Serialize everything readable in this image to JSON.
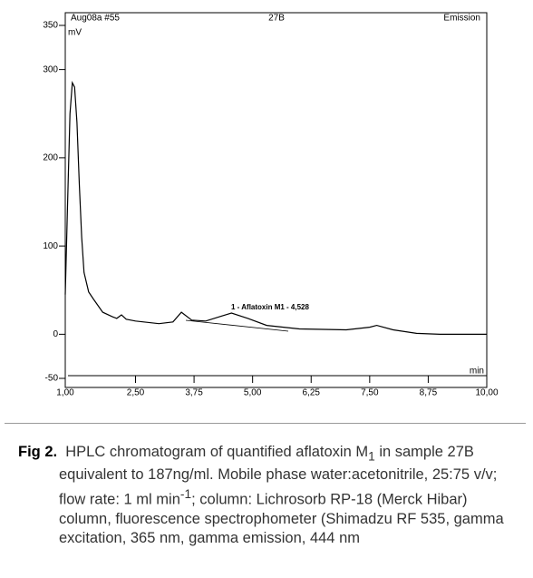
{
  "chart_data": {
    "type": "line",
    "header_left": "Aug08a #55",
    "header_center": "27B",
    "header_right": "Emission",
    "y_unit": "mV",
    "x_unit": "min",
    "annotation": "1 - Aflatoxin M1 - 4,528",
    "x": [
      1.0,
      1.05,
      1.1,
      1.15,
      1.2,
      1.25,
      1.3,
      1.35,
      1.4,
      1.5,
      1.6,
      1.8,
      2.0,
      2.1,
      2.2,
      2.3,
      2.5,
      3.0,
      3.3,
      3.48,
      3.7,
      4.0,
      4.3,
      4.55,
      4.9,
      5.3,
      6.0,
      7.0,
      7.5,
      7.65,
      8.0,
      8.5,
      9.0,
      10.0
    ],
    "series": [
      {
        "color": "#000000",
        "values": [
          45,
          150,
          250,
          285,
          280,
          240,
          170,
          110,
          70,
          48,
          40,
          25,
          20,
          18,
          22,
          17,
          15,
          12,
          14,
          25,
          16,
          15,
          20,
          24,
          18,
          10,
          6,
          5,
          8,
          10,
          5,
          1,
          0,
          0
        ]
      }
    ],
    "xlim": [
      1.0,
      10.0
    ],
    "ylim": [
      -50,
      350
    ],
    "xticks": [
      {
        "value": 1.0,
        "label": "1,00"
      },
      {
        "value": 2.5,
        "label": "2,50"
      },
      {
        "value": 3.75,
        "label": "3,75"
      },
      {
        "value": 5.0,
        "label": "5,00"
      },
      {
        "value": 6.25,
        "label": "6,25"
      },
      {
        "value": 7.5,
        "label": "7,50"
      },
      {
        "value": 8.75,
        "label": "8,75"
      },
      {
        "value": 10.0,
        "label": "10,00"
      }
    ],
    "yticks": [
      350,
      300,
      200,
      100,
      0,
      -50
    ]
  },
  "caption": {
    "label": "Fig 2.",
    "text_1": "HPLC chromatogram of quantified aflatoxin M",
    "sub": "1",
    "text_2": " in sample 27B equivalent to 187ng/ml. Mobile phase water:acetonitrile, 25:75 v/v; flow rate: 1 ml min",
    "sup": "-1",
    "text_3": "; column: Lichrosorb RP-18 (Merck Hibar) column, fluorescence spectrophometer (Shimadzu RF 535, gamma excitation, 365 nm, gamma emission, 444 nm"
  }
}
